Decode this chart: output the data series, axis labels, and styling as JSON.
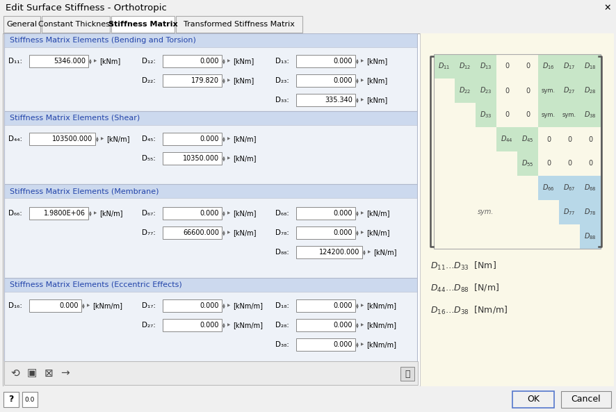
{
  "title": "Edit Surface Stiffness - Orthotropic",
  "tabs": [
    "General",
    "Constant Thickness",
    "Stiffness Matrix",
    "Transformed Stiffness Matrix"
  ],
  "active_tab": "Stiffness Matrix",
  "bg_color": "#f0f0f0",
  "panel_bg": "#ffffff",
  "matrix_bg": "#faf8e8",
  "green_color": "#c8e6c8",
  "blue_color": "#b8d8e8",
  "section_header_bg": "#ccd9ee",
  "section_body_bg": "#e8eef8",
  "sections": [
    {
      "title": "Stiffness Matrix Elements (Bending and Torsion)"
    },
    {
      "title": "Stiffness Matrix Elements (Shear)"
    },
    {
      "title": "Stiffness Matrix Elements (Membrane)"
    },
    {
      "title": "Stiffness Matrix Elements (Eccentric Effects)"
    }
  ]
}
